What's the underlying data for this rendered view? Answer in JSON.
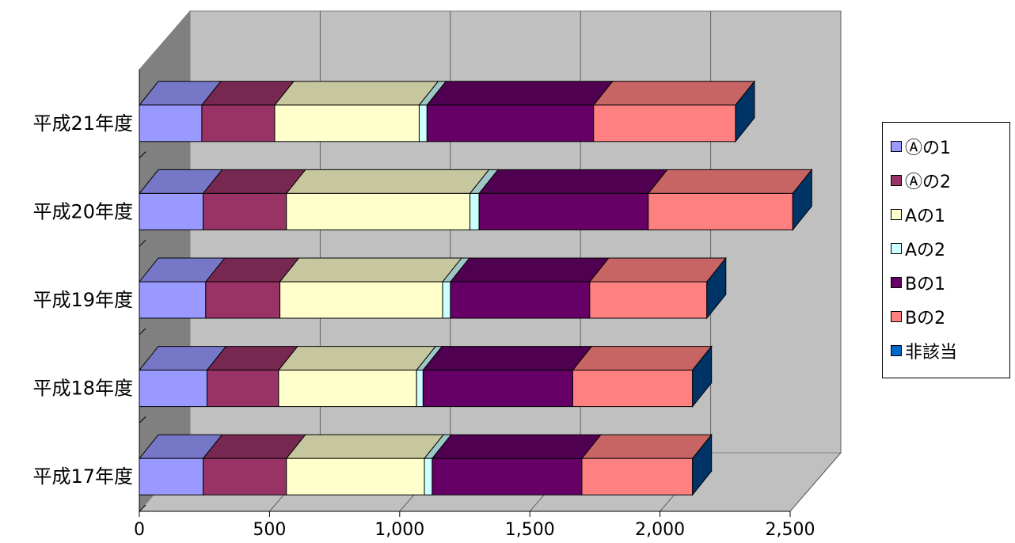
{
  "chart_data": {
    "type": "bar",
    "orientation": "horizontal",
    "stacked": true,
    "three_d": true,
    "categories": [
      "平成17年度",
      "平成18年度",
      "平成19年度",
      "平成20年度",
      "平成21年度"
    ],
    "series": [
      {
        "name": "Ⓐの1",
        "color": "#9999ff",
        "values": [
          245,
          260,
          255,
          245,
          240
        ]
      },
      {
        "name": "Ⓐの2",
        "color": "#993366",
        "values": [
          320,
          275,
          285,
          320,
          280
        ]
      },
      {
        "name": "Aの1",
        "color": "#ffffcc",
        "values": [
          530,
          530,
          625,
          705,
          555
        ]
      },
      {
        "name": "Aの2",
        "color": "#ccffff",
        "values": [
          30,
          25,
          30,
          35,
          30
        ]
      },
      {
        "name": "Bの1",
        "color": "#660066",
        "values": [
          575,
          575,
          535,
          650,
          640
        ]
      },
      {
        "name": "Bの2",
        "color": "#ff8080",
        "values": [
          425,
          460,
          450,
          555,
          545
        ]
      },
      {
        "name": "非該当",
        "color": "#0066cc",
        "values": [
          0,
          0,
          0,
          0,
          0
        ]
      }
    ],
    "xlim": [
      0,
      2500
    ],
    "x_ticks": [
      "0",
      "500",
      "1,000",
      "1,500",
      "2,000",
      "2,500"
    ],
    "grid": true,
    "legend_position": "right"
  }
}
